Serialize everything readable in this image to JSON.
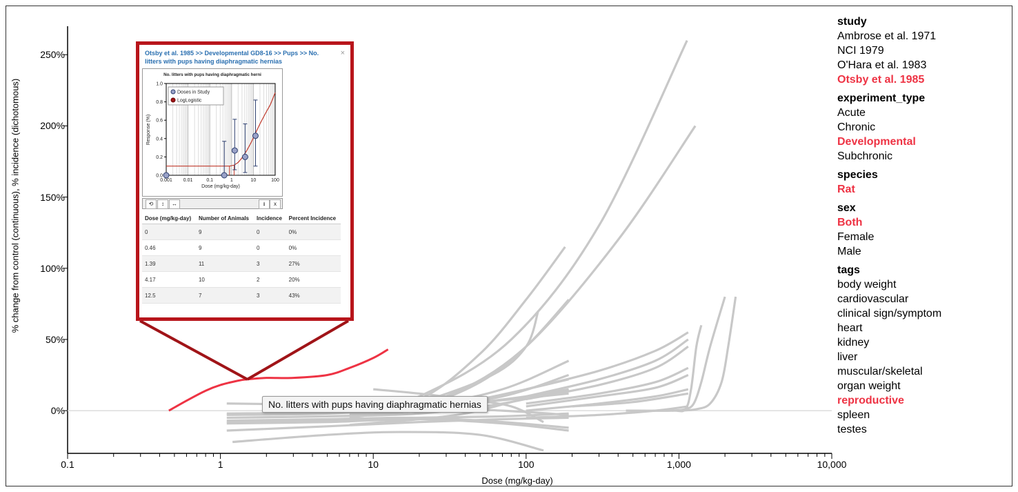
{
  "chart_data": {
    "type": "line",
    "title": "",
    "xlabel": "Dose (mg/kg-day)",
    "ylabel": "% change from control (continuous), % incidence (dichotomous)",
    "x_scale": "log",
    "xlim": [
      0.1,
      10000
    ],
    "ylim": [
      -30,
      270
    ],
    "x_ticks": [
      {
        "value": 0.1,
        "label": "0.1"
      },
      {
        "value": 1,
        "label": "1"
      },
      {
        "value": 10,
        "label": "10"
      },
      {
        "value": 100,
        "label": "100"
      },
      {
        "value": 1000,
        "label": "1,000"
      },
      {
        "value": 10000,
        "label": "10,000"
      }
    ],
    "y_ticks": [
      {
        "value": 0,
        "label": "0%"
      },
      {
        "value": 50,
        "label": "50%"
      },
      {
        "value": 100,
        "label": "100%"
      },
      {
        "value": 150,
        "label": "150%"
      },
      {
        "value": 200,
        "label": "200%"
      },
      {
        "value": 250,
        "label": "250%"
      }
    ],
    "highlight_color": "#ee3344",
    "background_color": "#c8c8c8",
    "highlighted_series": {
      "name": "No. litters with pups having diaphragmatic hernias",
      "x": [
        0.46,
        0.6,
        0.8,
        1.0,
        1.3,
        1.5,
        2.0,
        3.0,
        5.0,
        7.0,
        10.0,
        12.5
      ],
      "y": [
        0,
        7,
        14,
        18,
        21,
        22,
        23,
        23,
        25,
        30,
        37,
        43
      ]
    },
    "series": [
      {
        "x": [
          1.1,
          5,
          20,
          70,
          190
        ],
        "y": [
          -2,
          -1,
          3,
          15,
          35
        ]
      },
      {
        "x": [
          1.1,
          5,
          20,
          70,
          190
        ],
        "y": [
          -3,
          -2,
          2,
          10,
          25
        ]
      },
      {
        "x": [
          1.1,
          5,
          20,
          70,
          190
        ],
        "y": [
          -5,
          -4,
          -2,
          5,
          15
        ]
      },
      {
        "x": [
          1.1,
          5,
          20,
          70,
          190
        ],
        "y": [
          -8,
          -7,
          -5,
          -4,
          -2
        ]
      },
      {
        "x": [
          1.1,
          5,
          20,
          70,
          190
        ],
        "y": [
          -14,
          -11,
          -8,
          -6,
          -5
        ]
      },
      {
        "x": [
          1.1,
          5,
          20,
          70,
          190
        ],
        "y": [
          5,
          4,
          2,
          0,
          -3
        ]
      },
      {
        "x": [
          1.2,
          5,
          15,
          50,
          130
        ],
        "y": [
          -22,
          -17,
          -15,
          -17,
          -28
        ]
      },
      {
        "x": [
          10,
          20,
          40,
          80,
          130
        ],
        "y": [
          15,
          12,
          8,
          3,
          -8
        ]
      },
      {
        "x": [
          7,
          20,
          40,
          80,
          110
        ],
        "y": [
          -10,
          -6,
          -2,
          6,
          10
        ]
      },
      {
        "x": [
          1.1,
          5,
          20,
          70,
          190
        ],
        "y": [
          -7,
          -6,
          -5,
          -8,
          -12
        ]
      },
      {
        "x": [
          1.1,
          5,
          20,
          70,
          190
        ],
        "y": [
          -9,
          -8,
          -6,
          -9,
          -14
        ]
      },
      {
        "x": [
          7,
          20,
          60,
          100,
          120
        ],
        "y": [
          -2,
          6,
          25,
          45,
          70
        ]
      },
      {
        "x": [
          7,
          20,
          50,
          100,
          190
        ],
        "y": [
          -5,
          3,
          20,
          45,
          78
        ]
      },
      {
        "x": [
          7,
          20,
          50,
          100,
          190
        ],
        "y": [
          -3,
          0,
          8,
          15,
          22
        ]
      },
      {
        "x": [
          7,
          20,
          50,
          100,
          190
        ],
        "y": [
          -2,
          2,
          6,
          10,
          15
        ]
      },
      {
        "x": [
          7,
          20,
          50,
          100,
          190
        ],
        "y": [
          0,
          3,
          6,
          9,
          12
        ]
      },
      {
        "x": [
          7,
          20,
          50,
          100,
          180
        ],
        "y": [
          0,
          8,
          40,
          78,
          115
        ]
      },
      {
        "x": [
          8,
          20,
          80,
          300,
          1130
        ],
        "y": [
          0,
          10,
          50,
          130,
          260
        ]
      },
      {
        "x": [
          10,
          30,
          100,
          400,
          1280
        ],
        "y": [
          0,
          10,
          45,
          120,
          200
        ]
      },
      {
        "x": [
          100,
          300,
          700,
          1150
        ],
        "y": [
          15,
          28,
          42,
          55
        ]
      },
      {
        "x": [
          100,
          300,
          700,
          1150
        ],
        "y": [
          10,
          22,
          35,
          50
        ]
      },
      {
        "x": [
          100,
          300,
          700,
          1150
        ],
        "y": [
          8,
          18,
          30,
          45
        ]
      },
      {
        "x": [
          100,
          300,
          700,
          1150
        ],
        "y": [
          5,
          12,
          20,
          30
        ]
      },
      {
        "x": [
          100,
          300,
          700,
          1150
        ],
        "y": [
          3,
          10,
          16,
          25
        ]
      },
      {
        "x": [
          100,
          300,
          700,
          1150
        ],
        "y": [
          0,
          5,
          10,
          15
        ]
      },
      {
        "x": [
          100,
          300,
          700,
          1150
        ],
        "y": [
          -5,
          -3,
          0,
          3
        ]
      },
      {
        "x": [
          200,
          500,
          1150
        ],
        "y": [
          3,
          6,
          12
        ]
      },
      {
        "x": [
          450,
          900,
          1100,
          1200,
          1300,
          1400
        ],
        "y": [
          0,
          0,
          1,
          15,
          45,
          60
        ]
      },
      {
        "x": [
          900,
          1100,
          1250,
          1400,
          1600,
          2000
        ],
        "y": [
          0,
          1,
          5,
          20,
          45,
          80
        ]
      },
      {
        "x": [
          1000,
          1300,
          1600,
          1900,
          2100,
          2350
        ],
        "y": [
          0,
          1,
          5,
          20,
          45,
          80
        ]
      }
    ],
    "inset_chart": {
      "type": "scatter",
      "title": "No. litters with pups having diaphragmatic herni",
      "xlabel": "Dose (mg/kg-day)",
      "ylabel": "Response (%)",
      "x_scale": "log",
      "xlim": [
        0.001,
        100
      ],
      "ylim": [
        0,
        1.0
      ],
      "x_tick_labels": [
        "0.001",
        "0.01",
        "0.1",
        "1",
        "10",
        "100"
      ],
      "y_tick_labels": [
        "0.0",
        "0.2",
        "0.4",
        "0.6",
        "0.8",
        "1.0"
      ],
      "legend": [
        "Doses in Study",
        "LogLogistic"
      ],
      "legend_position": "top-left",
      "points": [
        {
          "x": 0.001,
          "y": 0.0,
          "lo": 0.0,
          "hi": 0.0
        },
        {
          "x": 0.46,
          "y": 0.0,
          "lo": 0.0,
          "hi": 0.37
        },
        {
          "x": 1.39,
          "y": 0.27,
          "lo": 0.06,
          "hi": 0.61
        },
        {
          "x": 4.17,
          "y": 0.2,
          "lo": 0.03,
          "hi": 0.56
        },
        {
          "x": 12.5,
          "y": 0.43,
          "lo": 0.1,
          "hi": 0.82
        }
      ],
      "fit_curve": {
        "x": [
          0.001,
          0.01,
          0.1,
          0.4,
          0.8,
          1.3,
          2,
          3,
          5,
          8,
          12,
          20,
          35,
          60,
          100
        ],
        "y": [
          0.1,
          0.1,
          0.1,
          0.1,
          0.1,
          0.11,
          0.14,
          0.19,
          0.27,
          0.36,
          0.45,
          0.56,
          0.67,
          0.77,
          0.9
        ]
      },
      "bmd_lines": [
        {
          "x": 0.8,
          "y": 0.1
        },
        {
          "x": 1.3,
          "y": 0.11
        }
      ]
    }
  },
  "legend": {
    "groups": [
      {
        "title": "study",
        "items": [
          {
            "label": "Ambrose et al. 1971",
            "active": false
          },
          {
            "label": "NCI 1979",
            "active": false
          },
          {
            "label": "O'Hara et al. 1983",
            "active": false
          },
          {
            "label": "Otsby et al. 1985",
            "active": true
          }
        ]
      },
      {
        "title": "experiment_type",
        "items": [
          {
            "label": "Acute",
            "active": false
          },
          {
            "label": "Chronic",
            "active": false
          },
          {
            "label": "Developmental",
            "active": true
          },
          {
            "label": "Subchronic",
            "active": false
          }
        ]
      },
      {
        "title": "species",
        "items": [
          {
            "label": "Rat",
            "active": true
          }
        ]
      },
      {
        "title": "sex",
        "items": [
          {
            "label": "Both",
            "active": true
          },
          {
            "label": "Female",
            "active": false
          },
          {
            "label": "Male",
            "active": false
          }
        ]
      },
      {
        "title": "tags",
        "items": [
          {
            "label": "body weight",
            "active": false
          },
          {
            "label": "cardiovascular",
            "active": false
          },
          {
            "label": "clinical sign/symptom",
            "active": false
          },
          {
            "label": "heart",
            "active": false
          },
          {
            "label": "kidney",
            "active": false
          },
          {
            "label": "liver",
            "active": false
          },
          {
            "label": "muscular/skeletal",
            "active": false
          },
          {
            "label": "organ weight",
            "active": false
          },
          {
            "label": "reproductive",
            "active": true
          },
          {
            "label": "spleen",
            "active": false
          },
          {
            "label": "testes",
            "active": false
          }
        ]
      }
    ]
  },
  "tooltip": {
    "text": "No. litters with pups having diaphragmatic hernias"
  },
  "popup": {
    "title": "Otsby et al. 1985 >> Developmental GD8-16 >> Pups >> No. litters with pups having diaphragmatic hernias",
    "close": "×",
    "toolbar": {
      "reset": "⟲",
      "zoom_y": "↕",
      "zoom_x": "↔",
      "download": "⭳",
      "close": "x"
    },
    "table": {
      "headers": [
        "Dose (mg/kg-day)",
        "Number of Animals",
        "Incidence",
        "Percent Incidence"
      ],
      "rows": [
        [
          "0",
          "9",
          "0",
          "0%"
        ],
        [
          "0.46",
          "9",
          "0",
          "0%"
        ],
        [
          "1.39",
          "11",
          "3",
          "27%"
        ],
        [
          "4.17",
          "10",
          "2",
          "20%"
        ],
        [
          "12.5",
          "7",
          "3",
          "43%"
        ]
      ]
    }
  }
}
